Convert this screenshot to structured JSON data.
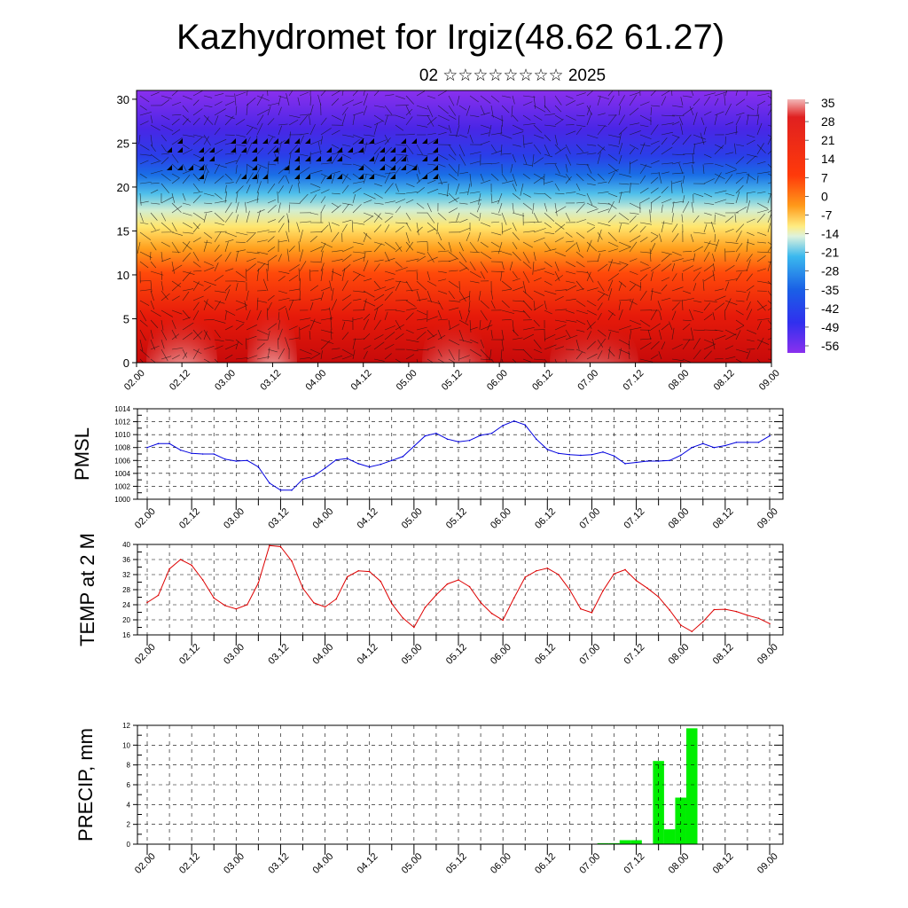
{
  "header": {
    "title": "Kazhydromet for Irgiz(48.62 61.27)",
    "subtitle": "02 ☆☆☆☆☆☆☆☆ 2025"
  },
  "colors": {
    "pmsl_line": "#0000dd",
    "temp_line": "#dd0000",
    "precip_bar": "#00ee00",
    "grid": "#000000"
  },
  "chart_data": [
    {
      "id": "cross-section",
      "type": "heatmap",
      "title": "",
      "xlabel": "",
      "ylabel": "",
      "x_ticks": [
        "02.00",
        "02.12",
        "03.00",
        "03.12",
        "04.00",
        "04.12",
        "05.00",
        "05.12",
        "06.00",
        "06.12",
        "07.00",
        "07.12",
        "08.00",
        "08.12",
        "09.00"
      ],
      "ylim": [
        0,
        31
      ],
      "y_ticks": [
        0,
        5,
        10,
        15,
        20,
        25,
        30
      ],
      "colorbar_labels": [
        "35",
        "28",
        "21",
        "14",
        "7",
        "0",
        "-7",
        "-14",
        "-21",
        "-28",
        "-35",
        "-42",
        "-49",
        "-56"
      ],
      "colorbar_range": [
        -63,
        42
      ],
      "overlay": "wind vectors"
    },
    {
      "id": "pmsl",
      "type": "line",
      "ylabel": "PMSL",
      "ylim": [
        1000,
        1014
      ],
      "y_ticks": [
        1000,
        1002,
        1004,
        1006,
        1008,
        1010,
        1012,
        1014
      ],
      "x_ticks": [
        "02.00",
        "02.12",
        "03.00",
        "03.12",
        "04.00",
        "04.12",
        "05.00",
        "05.12",
        "06.00",
        "06.12",
        "07.00",
        "07.12",
        "08.00",
        "08.12",
        "09.00"
      ],
      "x_step_hours": 3,
      "values": [
        1008.0,
        1008.6,
        1008.6,
        1007.6,
        1007.1,
        1007.0,
        1007.0,
        1006.2,
        1005.9,
        1006.0,
        1005.0,
        1002.5,
        1001.4,
        1001.4,
        1003.1,
        1003.6,
        1004.8,
        1006.1,
        1006.3,
        1005.5,
        1005.0,
        1005.4,
        1006.0,
        1006.6,
        1008.2,
        1009.8,
        1010.2,
        1009.3,
        1008.9,
        1009.1,
        1009.9,
        1010.2,
        1011.4,
        1012.1,
        1011.5,
        1009.3,
        1007.7,
        1007.1,
        1006.9,
        1006.8,
        1006.9,
        1007.3,
        1006.7,
        1005.5,
        1005.7,
        1005.9,
        1005.9,
        1006.0,
        1006.8,
        1008.0,
        1008.6,
        1008.0,
        1008.3,
        1008.8,
        1008.8,
        1008.8,
        1009.8
      ]
    },
    {
      "id": "temp",
      "type": "line",
      "ylabel": "TEMP at 2 M",
      "ylim": [
        16,
        40
      ],
      "y_ticks": [
        16,
        20,
        24,
        28,
        32,
        36,
        40
      ],
      "x_ticks": [
        "02.00",
        "02.12",
        "03.00",
        "03.12",
        "04.00",
        "04.12",
        "05.00",
        "05.12",
        "06.00",
        "06.12",
        "07.00",
        "07.12",
        "08.00",
        "08.12",
        "09.00"
      ],
      "x_step_hours": 3,
      "values": [
        24.6,
        26.5,
        33.5,
        36.0,
        34.5,
        30.6,
        25.8,
        23.8,
        22.9,
        24.0,
        29.8,
        39.7,
        39.4,
        35.6,
        28.4,
        24.5,
        23.4,
        25.5,
        31.4,
        33.0,
        32.8,
        30.2,
        24.3,
        20.5,
        18.0,
        23.3,
        26.6,
        29.5,
        30.6,
        28.8,
        24.6,
        21.7,
        19.9,
        25.8,
        31.3,
        33.0,
        33.7,
        32.0,
        28.0,
        22.9,
        21.9,
        27.7,
        32.2,
        33.3,
        30.4,
        28.4,
        26.1,
        22.6,
        18.6,
        16.9,
        19.5,
        22.7,
        22.8,
        22.2,
        21.2,
        20.4,
        19.0
      ]
    },
    {
      "id": "precip",
      "type": "bar",
      "ylabel": "PRECIP, mm",
      "ylim": [
        0,
        12
      ],
      "y_ticks": [
        0,
        2,
        4,
        6,
        8,
        10,
        12
      ],
      "x_ticks": [
        "02.00",
        "02.12",
        "03.00",
        "03.12",
        "04.00",
        "04.12",
        "05.00",
        "05.12",
        "06.00",
        "06.12",
        "07.00",
        "07.12",
        "08.00",
        "08.12",
        "09.00"
      ],
      "x_step_hours": 3,
      "values": [
        0,
        0,
        0,
        0,
        0,
        0,
        0,
        0,
        0,
        0,
        0,
        0,
        0,
        0,
        0,
        0,
        0,
        0,
        0,
        0,
        0,
        0,
        0,
        0,
        0,
        0,
        0,
        0,
        0,
        0,
        0,
        0,
        0,
        0,
        0,
        0,
        0,
        0,
        0,
        0,
        0,
        0.1,
        0.1,
        0.4,
        0.4,
        0,
        8.4,
        1.5,
        4.7,
        11.7,
        0,
        0,
        0,
        0,
        0,
        0
      ]
    }
  ]
}
